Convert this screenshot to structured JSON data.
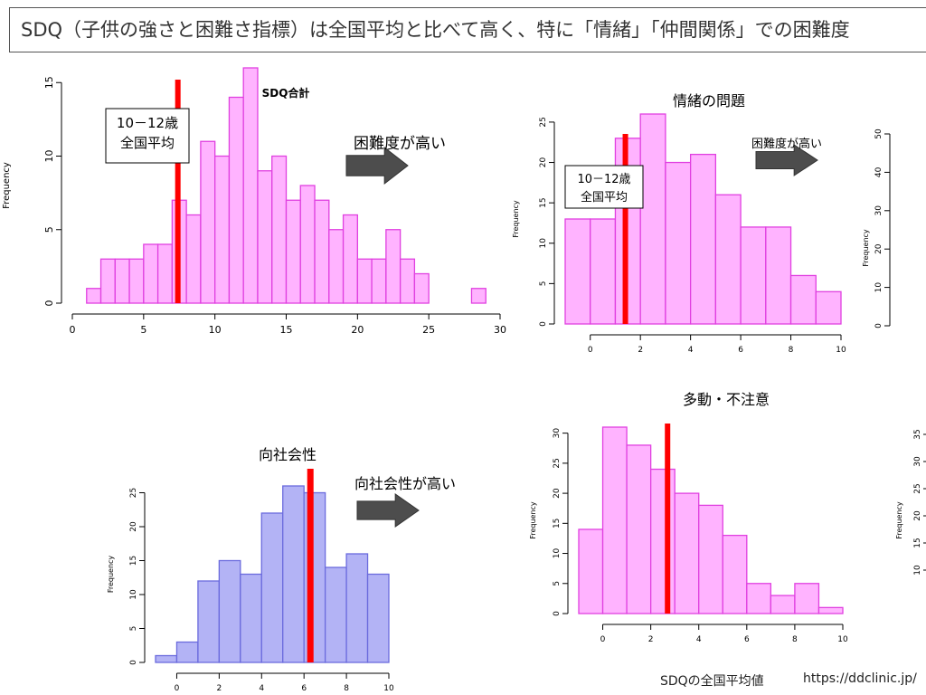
{
  "header": {
    "title": "SDQ（子供の強さと困難さ指標）は全国平均と比べて高く、特に「情緒」「仲間関係」での困難度"
  },
  "footer": {
    "source_label": "SDQの全国平均値",
    "url": "https://ddclinic.jp/"
  },
  "colors": {
    "difficulty_bar_fill": "#ffb3ff",
    "difficulty_bar_stroke": "#e040e0",
    "prosocial_bar_fill": "#b3b3f5",
    "prosocial_bar_stroke": "#6b6bdd",
    "average_line": "#ff0000",
    "arrow": "#4d4d4d"
  },
  "chart_data": [
    {
      "id": "sdq_total",
      "type": "bar",
      "title": "SDQ合計",
      "ylabel": "Frequency",
      "x_edges_start": 0,
      "bin_width": 1,
      "values": [
        0,
        1,
        3,
        3,
        3,
        4,
        4,
        7,
        6,
        11,
        10,
        14,
        16,
        9,
        10,
        7,
        8,
        7,
        5,
        6,
        3,
        3,
        5,
        3,
        2,
        0,
        0,
        0,
        1
      ],
      "xlim": [
        0,
        30
      ],
      "ylim": [
        0,
        16
      ],
      "xticks": [
        0,
        5,
        10,
        15,
        20,
        25,
        30
      ],
      "yticks": [
        0,
        5,
        10,
        15
      ],
      "average_value": 7.4,
      "average_label": [
        "10－12歳",
        "全国平均"
      ],
      "arrow_label": "困難度が高い"
    },
    {
      "id": "emotional",
      "type": "bar",
      "title": "情緒の問題",
      "ylabel": "Frequency",
      "x_edges_start": -1,
      "bin_width": 1,
      "values": [
        13,
        13,
        23,
        26,
        20,
        21,
        16,
        12,
        12,
        6,
        4
      ],
      "xlim": [
        -1,
        10
      ],
      "ylim": [
        0,
        26
      ],
      "xticks": [
        0,
        2,
        4,
        6,
        8,
        10
      ],
      "yticks": [
        0,
        5,
        10,
        15,
        20,
        25
      ],
      "average_value": 1.4,
      "average_label": [
        "10－12歳",
        "全国平均"
      ],
      "arrow_label": "困難度が高い"
    },
    {
      "id": "prosocial",
      "type": "bar",
      "title": "向社会性",
      "ylabel": "Frequency",
      "x_edges_start": -1,
      "bin_width": 1,
      "values": [
        1,
        3,
        12,
        15,
        13,
        22,
        26,
        25,
        14,
        16,
        13
      ],
      "xlim": [
        -1,
        10
      ],
      "ylim": [
        0,
        26
      ],
      "xticks": [
        0,
        2,
        4,
        6,
        8,
        10
      ],
      "yticks": [
        0,
        5,
        10,
        15,
        20,
        25
      ],
      "average_value": 6.3,
      "arrow_label": "向社会性が高い"
    },
    {
      "id": "hyperactivity",
      "type": "bar",
      "title": "多動・不注意",
      "ylabel": "Frequency",
      "x_edges_start": -1,
      "bin_width": 1,
      "values": [
        14,
        31,
        28,
        24,
        20,
        18,
        13,
        5,
        3,
        5,
        1
      ],
      "xlim": [
        -1,
        10
      ],
      "ylim": [
        0,
        31
      ],
      "xticks": [
        0,
        2,
        4,
        6,
        8,
        10
      ],
      "yticks": [
        0,
        5,
        10,
        15,
        20,
        25,
        30
      ],
      "average_value": 2.7
    },
    {
      "id": "right_partial_top",
      "type": "bar",
      "ylabel": "Frequency",
      "values": [],
      "ylim": [
        0,
        50
      ],
      "yticks": [
        0,
        10,
        20,
        30,
        40,
        50
      ]
    },
    {
      "id": "right_partial_bottom",
      "type": "bar",
      "ylabel": "Frequency",
      "values": [],
      "ylim": [
        0,
        35
      ],
      "yticks": [
        10,
        15,
        20,
        25,
        30,
        35
      ]
    }
  ]
}
